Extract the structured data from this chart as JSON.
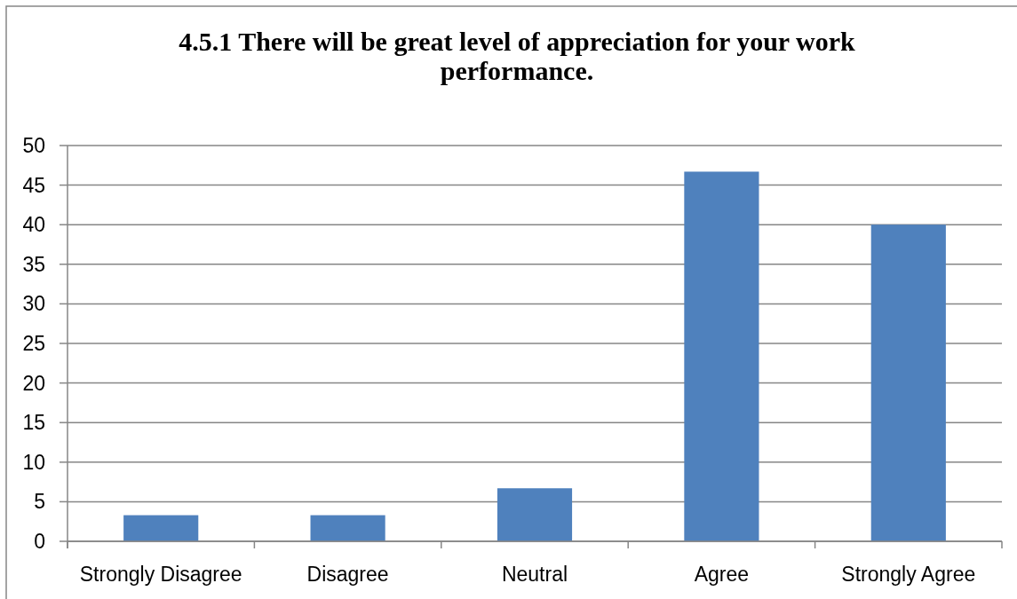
{
  "chart_data": {
    "type": "bar",
    "title": "4.5.1 There will be great level of appreciation for your work performance.",
    "categories": [
      "Strongly Disagree",
      "Disagree",
      "Neutral",
      "Agree",
      "Strongly Agree"
    ],
    "values": [
      3.3,
      3.3,
      6.7,
      46.7,
      40
    ],
    "color": "#4f81bd",
    "ylim": [
      0,
      50
    ],
    "yticks": [
      0,
      5,
      10,
      15,
      20,
      25,
      30,
      35,
      40,
      45,
      50
    ],
    "grid": "y"
  }
}
